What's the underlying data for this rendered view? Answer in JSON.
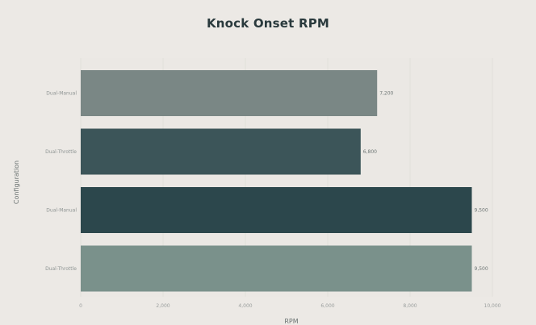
{
  "chart_data": {
    "type": "bar",
    "orientation": "horizontal",
    "title": "Knock Onset RPM",
    "xlabel": "RPM",
    "ylabel": "Configuration",
    "xlim": [
      0,
      10000
    ],
    "x_ticks": [
      "0",
      "2,000",
      "4,000",
      "6,000",
      "8,000",
      "10,000"
    ],
    "grid": "vertical",
    "legend": "none",
    "categories": [
      "Dual-Manual",
      "Dual-Throttle",
      "Dual-Manual",
      "Dual-Throttle"
    ],
    "values": [
      7200,
      6800,
      9500,
      9500
    ],
    "value_labels": [
      "7,200",
      "6,800",
      "9,500",
      "9,500"
    ],
    "colors": [
      "#7a8785",
      "#3c5559",
      "#2c474c",
      "#7a918b"
    ]
  }
}
